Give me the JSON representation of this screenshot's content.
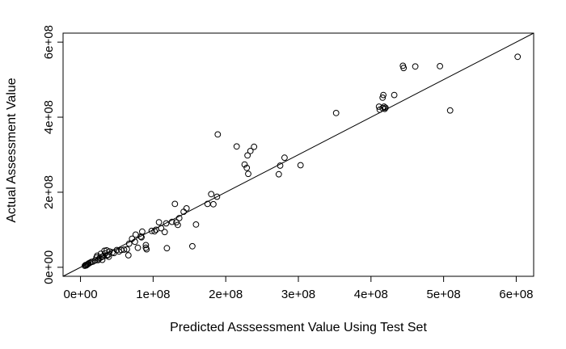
{
  "chart_data": {
    "type": "scatter",
    "title": "",
    "xlabel": "Predicted Asssessment Value Using Test Set",
    "ylabel": "Actual Assessment Value",
    "xlim": [
      -24000000.0,
      624000000.0
    ],
    "ylim": [
      -24000000.0,
      624000000.0
    ],
    "xticks": [
      {
        "value": 0,
        "label": "0e+00"
      },
      {
        "value": 100000000,
        "label": "1e+08"
      },
      {
        "value": 200000000,
        "label": "2e+08"
      },
      {
        "value": 300000000,
        "label": "3e+08"
      },
      {
        "value": 400000000,
        "label": "4e+08"
      },
      {
        "value": 500000000,
        "label": "5e+08"
      },
      {
        "value": 600000000,
        "label": "6e+08"
      }
    ],
    "yticks": [
      {
        "value": 0,
        "label": "0e+00"
      },
      {
        "value": 200000000,
        "label": "2e+08"
      },
      {
        "value": 400000000,
        "label": "4e+08"
      },
      {
        "value": 600000000,
        "label": "6e+08"
      }
    ],
    "reference_line": {
      "slope": 1,
      "intercept": 0
    },
    "grid": false,
    "marker": "open-circle",
    "points": [
      [
        602000000,
        561000000
      ],
      [
        509000000,
        418000000
      ],
      [
        495000000,
        536000000
      ],
      [
        461000000,
        535000000
      ],
      [
        444000000,
        537000000
      ],
      [
        445000000,
        531000000
      ],
      [
        432000000,
        459000000
      ],
      [
        417000000,
        459000000
      ],
      [
        416000000,
        452000000
      ],
      [
        411000000,
        428000000
      ],
      [
        412000000,
        420000000
      ],
      [
        416000000,
        424000000
      ],
      [
        418000000,
        428000000
      ],
      [
        419000000,
        422000000
      ],
      [
        420000000,
        425000000
      ],
      [
        352000000,
        411000000
      ],
      [
        303000000,
        272000000
      ],
      [
        281000000,
        292000000
      ],
      [
        275000000,
        271000000
      ],
      [
        273000000,
        248000000
      ],
      [
        239000000,
        321000000
      ],
      [
        234000000,
        310000000
      ],
      [
        230000000,
        298000000
      ],
      [
        226000000,
        274000000
      ],
      [
        229000000,
        265000000
      ],
      [
        231000000,
        249000000
      ],
      [
        215000000,
        322000000
      ],
      [
        189000000,
        354000000
      ],
      [
        188000000,
        188000000
      ],
      [
        180000000,
        195000000
      ],
      [
        183000000,
        168000000
      ],
      [
        175000000,
        169000000
      ],
      [
        146000000,
        157000000
      ],
      [
        142000000,
        148000000
      ],
      [
        159000000,
        114000000
      ],
      [
        154000000,
        56000000
      ],
      [
        130000000,
        169000000
      ],
      [
        136000000,
        131000000
      ],
      [
        132000000,
        120000000
      ],
      [
        126000000,
        121000000
      ],
      [
        134000000,
        113000000
      ],
      [
        118000000,
        117000000
      ],
      [
        111000000,
        104000000
      ],
      [
        108000000,
        120000000
      ],
      [
        104000000,
        100000000
      ],
      [
        98000000,
        97000000
      ],
      [
        102000000,
        96000000
      ],
      [
        116000000,
        94000000
      ],
      [
        119000000,
        51000000
      ],
      [
        90000000,
        59000000
      ],
      [
        90000000,
        52000000
      ],
      [
        91000000,
        48000000
      ],
      [
        85000000,
        95000000
      ],
      [
        83000000,
        82000000
      ],
      [
        84000000,
        80000000
      ],
      [
        76000000,
        87000000
      ],
      [
        75000000,
        68000000
      ],
      [
        71000000,
        76000000
      ],
      [
        79000000,
        52000000
      ],
      [
        67000000,
        63000000
      ],
      [
        64000000,
        48000000
      ],
      [
        60000000,
        47000000
      ],
      [
        56000000,
        46000000
      ],
      [
        53000000,
        42000000
      ],
      [
        66000000,
        32000000
      ],
      [
        50000000,
        46000000
      ],
      [
        46000000,
        38000000
      ],
      [
        44000000,
        40000000
      ],
      [
        40000000,
        42000000
      ],
      [
        38000000,
        33000000
      ],
      [
        34000000,
        37000000
      ],
      [
        31000000,
        29000000
      ],
      [
        28000000,
        36000000
      ],
      [
        30000000,
        28000000
      ],
      [
        27000000,
        25000000
      ],
      [
        25000000,
        22000000
      ],
      [
        23000000,
        31000000
      ],
      [
        24000000,
        19000000
      ],
      [
        30000000,
        20000000
      ],
      [
        36000000,
        45000000
      ],
      [
        20000000,
        18000000
      ],
      [
        17000000,
        15000000
      ],
      [
        15000000,
        14000000
      ],
      [
        13000000,
        12000000
      ],
      [
        10000000,
        8000000
      ],
      [
        9000000,
        7000000
      ],
      [
        8000000,
        5000000
      ],
      [
        7000000,
        6000000
      ],
      [
        6000000,
        4000000
      ],
      [
        11000000,
        10000000
      ],
      [
        36000000,
        31000000
      ],
      [
        39000000,
        28000000
      ],
      [
        22000000,
        26000000
      ],
      [
        33000000,
        44000000
      ]
    ]
  }
}
